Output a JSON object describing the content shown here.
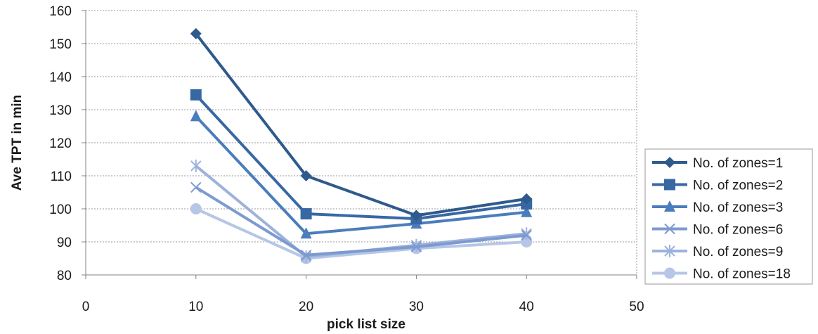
{
  "chart_data": {
    "type": "line",
    "xlabel": "pick list size",
    "ylabel": "Ave TPT in min",
    "xlim": [
      0,
      50
    ],
    "ylim": [
      80,
      160
    ],
    "x_ticks": [
      0,
      10,
      20,
      30,
      40,
      50
    ],
    "y_ticks": [
      80,
      90,
      100,
      110,
      120,
      130,
      140,
      150,
      160
    ],
    "grid": "horizontal dashed",
    "legend_position": "right",
    "x": [
      10,
      20,
      30,
      40
    ],
    "series": [
      {
        "name": "No. of zones=1",
        "marker": "diamond",
        "color": "#2e5a8c",
        "values": [
          153,
          110,
          98,
          103
        ]
      },
      {
        "name": "No. of zones=2",
        "marker": "square",
        "color": "#3868a4",
        "values": [
          134.5,
          98.5,
          97,
          101.5
        ]
      },
      {
        "name": "No. of zones=3",
        "marker": "triangle",
        "color": "#4a7dbc",
        "values": [
          128,
          92.5,
          95.5,
          99
        ]
      },
      {
        "name": "No. of zones=6",
        "marker": "x",
        "color": "#7d9ad0",
        "values": [
          106.5,
          86,
          88.5,
          92
        ]
      },
      {
        "name": "No. of zones=9",
        "marker": "star",
        "color": "#9cb2db",
        "values": [
          113,
          85.5,
          89,
          92.5
        ]
      },
      {
        "name": "No. of zones=18",
        "marker": "circle",
        "color": "#b6c6e6",
        "values": [
          100,
          85,
          88,
          90
        ]
      }
    ]
  }
}
